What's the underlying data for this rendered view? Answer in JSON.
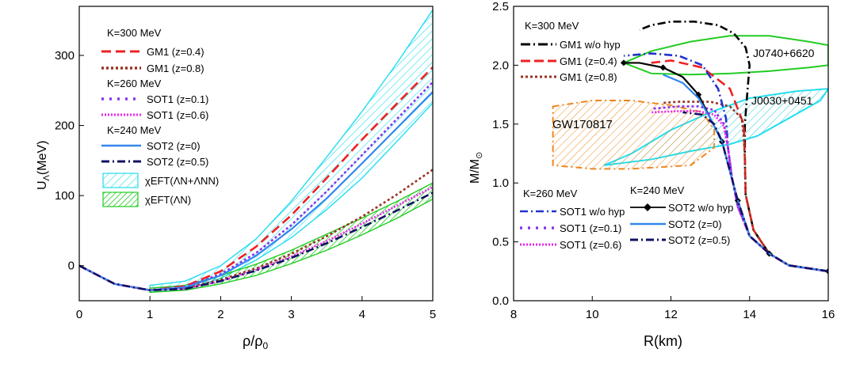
{
  "chart_data": [
    {
      "type": "line",
      "xlabel": "ρ/ρ",
      "xlabel_sub": "0",
      "ylabel": "U",
      "ylabel_sub": "Λ",
      "ylabel_unit": "(MeV)",
      "xlim": [
        0,
        5
      ],
      "ylim": [
        -50,
        370
      ],
      "xticks": [
        0,
        1,
        2,
        3,
        4,
        5
      ],
      "yticks": [
        0,
        100,
        200,
        300
      ],
      "legend_position": "top-left",
      "legend_headers": [
        "K=300 MeV",
        "K=260 MeV",
        "K=240 MeV"
      ],
      "series": [
        {
          "name": "GM1 (z=0.4)",
          "color": "#ee2222",
          "dash": "dash",
          "x": [
            0,
            0.5,
            1,
            1.5,
            2,
            2.5,
            3,
            3.5,
            4,
            4.5,
            5
          ],
          "values": [
            0,
            -26,
            -35,
            -29,
            -8,
            27,
            72,
            125,
            180,
            232,
            283
          ]
        },
        {
          "name": "GM1 (z=0.8)",
          "color": "#993322",
          "dash": "dot",
          "x": [
            0,
            0.5,
            1,
            1.5,
            2,
            2.5,
            3,
            3.5,
            4,
            4.5,
            5
          ],
          "values": [
            0,
            -26,
            -35,
            -32,
            -20,
            -4,
            17,
            42,
            70,
            102,
            137
          ]
        },
        {
          "name": "SOT1 (z=0.1)",
          "color": "#8833ee",
          "dash": "dot",
          "x": [
            0,
            0.5,
            1,
            1.5,
            2,
            2.5,
            3,
            3.5,
            4,
            4.5,
            5
          ],
          "values": [
            0,
            -26,
            -35,
            -30,
            -12,
            18,
            58,
            106,
            158,
            210,
            262
          ]
        },
        {
          "name": "SOT1 (z=0.6)",
          "color": "#ee22ee",
          "dash": "dense-dot",
          "x": [
            0,
            0.5,
            1,
            1.5,
            2,
            2.5,
            3,
            3.5,
            4,
            4.5,
            5
          ],
          "values": [
            0,
            -26,
            -35,
            -33,
            -22,
            -6,
            13,
            35,
            60,
            86,
            112
          ]
        },
        {
          "name": "SOT2 (z=0)",
          "color": "#3388ee",
          "dash": "solid",
          "x": [
            0,
            0.5,
            1,
            1.5,
            2,
            2.5,
            3,
            3.5,
            4,
            4.5,
            5
          ],
          "values": [
            0,
            -26,
            -35,
            -31,
            -14,
            14,
            52,
            96,
            146,
            197,
            248
          ]
        },
        {
          "name": "SOT2 (z=0.5)",
          "color": "#111166",
          "dash": "dash-dot",
          "x": [
            0,
            0.5,
            1,
            1.5,
            2,
            2.5,
            3,
            3.5,
            4,
            4.5,
            5
          ],
          "values": [
            0,
            -26,
            -35,
            -33,
            -22,
            -7,
            11,
            32,
            55,
            79,
            104
          ]
        }
      ],
      "bands": [
        {
          "name": "χEFT(ΛN+ΛNN)",
          "color": "#22ddee",
          "x": [
            1,
            1.5,
            2,
            2.5,
            3,
            3.5,
            4,
            4.5,
            5
          ],
          "upper": [
            -28,
            -22,
            0,
            38,
            92,
            155,
            220,
            290,
            365
          ],
          "lower": [
            -38,
            -34,
            -18,
            8,
            40,
            80,
            125,
            178,
            232
          ]
        },
        {
          "name": "χEFT(ΛN)",
          "color": "#22cc22",
          "x": [
            1,
            1.5,
            2,
            2.5,
            3,
            3.5,
            4,
            4.5,
            5
          ],
          "upper": [
            -32,
            -28,
            -14,
            2,
            22,
            45,
            68,
            92,
            118
          ],
          "lower": [
            -38,
            -35,
            -26,
            -14,
            3,
            22,
            44,
            68,
            95
          ]
        }
      ]
    },
    {
      "type": "line",
      "xlabel": "R(km)",
      "ylabel": "M/M",
      "ylabel_sub": "⊙",
      "xlim": [
        8,
        16
      ],
      "ylim": [
        0,
        2.5
      ],
      "xticks": [
        8,
        10,
        12,
        14,
        16
      ],
      "yticks": [
        0.0,
        0.5,
        1.0,
        1.5,
        2.0,
        2.5
      ],
      "legend_headers": [
        "K=300 MeV",
        "K=260 MeV",
        "K=240 MeV"
      ],
      "series": [
        {
          "name": "GM1 w/o hyp",
          "color": "#000000",
          "dash": "dash-dot",
          "x": [
            16,
            15,
            14.5,
            14.1,
            13.9,
            13.88,
            13.88,
            13.95,
            14.0,
            13.9,
            13.6,
            13.2,
            12.6,
            12.0,
            11.5,
            11.2
          ],
          "values": [
            0.25,
            0.3,
            0.4,
            0.6,
            0.9,
            1.2,
            1.5,
            1.8,
            2.0,
            2.15,
            2.27,
            2.34,
            2.37,
            2.37,
            2.34,
            2.3
          ]
        },
        {
          "name": "GM1 (z=0.4)",
          "color": "#ee2222",
          "dash": "dash",
          "x": [
            16,
            15,
            14.5,
            14.1,
            13.9,
            13.88,
            13.85,
            13.5,
            12.8,
            12.0,
            11.5
          ],
          "values": [
            0.25,
            0.3,
            0.4,
            0.6,
            0.9,
            1.2,
            1.5,
            1.8,
            1.98,
            2.04,
            2.02
          ]
        },
        {
          "name": "GM1 (z=0.8)",
          "color": "#993322",
          "dash": "dot",
          "x": [
            16,
            15,
            14.5,
            14.1,
            13.9,
            13.88,
            13.85,
            13.8,
            13.5,
            13.0,
            12.2,
            11.8
          ],
          "values": [
            0.25,
            0.3,
            0.4,
            0.6,
            0.9,
            1.2,
            1.4,
            1.55,
            1.65,
            1.69,
            1.69,
            1.68
          ]
        },
        {
          "name": "SOT1 w/o hyp",
          "color": "#2233cc",
          "dash": "dash-dot",
          "x": [
            16,
            15,
            14.5,
            14.0,
            13.7,
            13.55,
            13.45,
            13.4,
            13.2,
            12.8,
            12.2,
            11.5,
            10.8
          ],
          "values": [
            0.25,
            0.3,
            0.4,
            0.55,
            0.8,
            1.05,
            1.3,
            1.55,
            1.8,
            2.0,
            2.08,
            2.1,
            2.08
          ]
        },
        {
          "name": "SOT1 (z=0.1)",
          "color": "#8833ee",
          "dash": "dot",
          "x": [
            16,
            15,
            14.5,
            14.0,
            13.7,
            13.55,
            13.45,
            13.35,
            13.1,
            12.7,
            12.2,
            11.5
          ],
          "values": [
            0.25,
            0.3,
            0.4,
            0.55,
            0.8,
            1.05,
            1.3,
            1.5,
            1.62,
            1.65,
            1.65,
            1.63
          ]
        },
        {
          "name": "SOT1 (z=0.6)",
          "color": "#ee22ee",
          "dash": "dense-dot",
          "x": [
            16,
            15,
            14.5,
            14.0,
            13.7,
            13.55,
            13.45,
            13.35,
            13.1,
            12.7,
            12.2,
            11.5
          ],
          "values": [
            0.25,
            0.3,
            0.4,
            0.55,
            0.8,
            1.05,
            1.3,
            1.48,
            1.58,
            1.61,
            1.61,
            1.6
          ]
        },
        {
          "name": "SOT2 w/o hyp",
          "color": "#000000",
          "dash": "solid",
          "markers": "diamond",
          "x": [
            16,
            15,
            14.5,
            14.0,
            13.7,
            13.5,
            13.3,
            13.0,
            12.7,
            12.3,
            11.8,
            11.2,
            10.8
          ],
          "values": [
            0.25,
            0.3,
            0.4,
            0.55,
            0.85,
            1.1,
            1.35,
            1.55,
            1.75,
            1.9,
            1.98,
            2.02,
            2.02
          ]
        },
        {
          "name": "SOT2 (z=0)",
          "color": "#3388ee",
          "dash": "solid",
          "x": [
            16,
            15,
            14.5,
            14.0,
            13.7,
            13.5,
            13.3,
            13.0,
            12.7,
            12.3,
            11.8
          ],
          "values": [
            0.25,
            0.3,
            0.4,
            0.55,
            0.85,
            1.1,
            1.35,
            1.55,
            1.72,
            1.85,
            1.92
          ]
        },
        {
          "name": "SOT2 (z=0.5)",
          "color": "#111166",
          "dash": "dash-dot",
          "x": [
            16,
            15,
            14.5,
            14.0,
            13.7,
            13.5,
            13.3,
            13.1,
            12.8,
            12.3
          ],
          "values": [
            0.25,
            0.3,
            0.4,
            0.55,
            0.85,
            1.1,
            1.35,
            1.5,
            1.58,
            1.6
          ]
        }
      ],
      "regions": [
        {
          "name": "J0740+6620",
          "color": "#22cc22",
          "x": [
            10.8,
            11.5,
            12.5,
            13.5,
            14.5,
            15.5,
            16,
            16,
            15.5,
            14.5,
            13.5,
            12.5,
            11.5,
            10.8
          ],
          "values": [
            2.02,
            2.12,
            2.2,
            2.25,
            2.25,
            2.2,
            2.17,
            2.0,
            1.98,
            1.95,
            1.93,
            1.92,
            1.93,
            2.02
          ]
        },
        {
          "name": "J0030+0451",
          "color": "#22ddee",
          "x": [
            10.3,
            11.5,
            12.5,
            13.5,
            14.2,
            15.0,
            15.8,
            16.0,
            15.2,
            14.0,
            13.0,
            12.0,
            11.0,
            10.3
          ],
          "values": [
            1.15,
            1.2,
            1.27,
            1.33,
            1.4,
            1.55,
            1.7,
            1.8,
            1.78,
            1.72,
            1.6,
            1.45,
            1.25,
            1.15
          ]
        },
        {
          "name": "GW170817",
          "color": "#ee8822",
          "x": [
            9.0,
            10.0,
            11.0,
            12.0,
            12.8,
            13.1,
            13.1,
            12.5,
            11.0,
            10.0,
            9.0,
            9.0
          ],
          "values": [
            1.65,
            1.7,
            1.7,
            1.66,
            1.6,
            1.45,
            1.3,
            1.15,
            1.12,
            1.12,
            1.15,
            1.65
          ]
        }
      ],
      "region_labels": [
        "J0740+6620",
        "J0030+0451",
        "GW170817"
      ]
    }
  ]
}
